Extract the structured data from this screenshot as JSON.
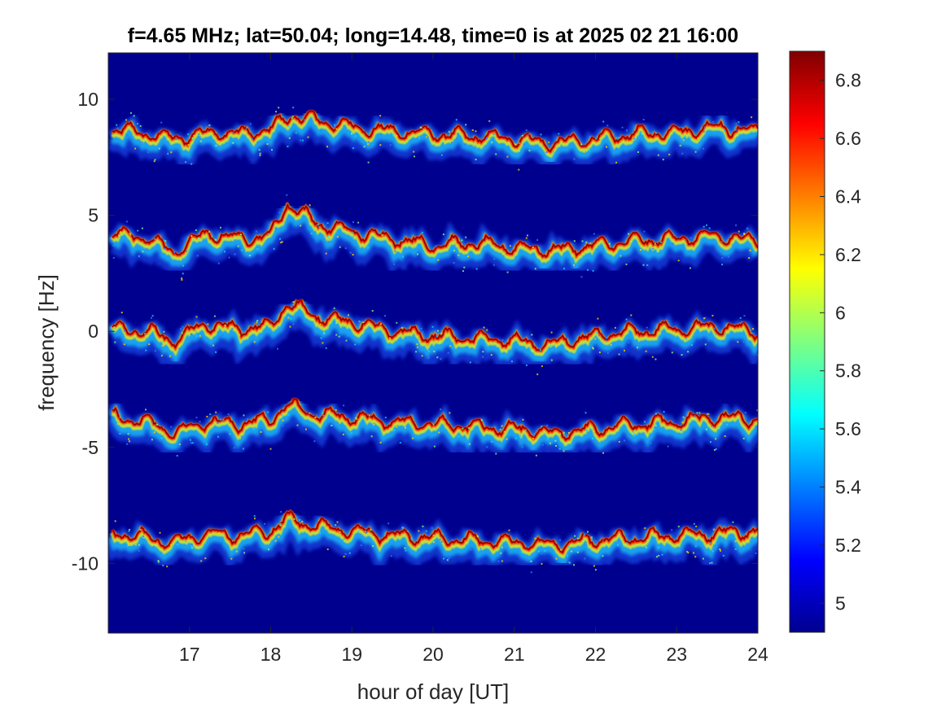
{
  "chart_data": {
    "type": "heatmap",
    "title": "f=4.65 MHz;  lat=50.04; long=14.48, time=0 is at 2025 02 21 16:00",
    "xlabel": "hour of day [UT]",
    "ylabel": "frequency [Hz]",
    "xlim": [
      16,
      24
    ],
    "ylim": [
      -13,
      12
    ],
    "x_ticks": [
      17,
      18,
      19,
      20,
      21,
      22,
      23,
      24
    ],
    "x_tick_labels": [
      "17",
      "18",
      "19",
      "20",
      "21",
      "22",
      "23",
      "24"
    ],
    "y_ticks": [
      -10,
      -5,
      0,
      5,
      10
    ],
    "y_tick_labels": [
      "-10",
      "-5",
      "0",
      "5",
      "10"
    ],
    "colorbar": {
      "range": [
        4.9,
        6.9
      ],
      "ticks": [
        5,
        5.2,
        5.4,
        5.6,
        5.8,
        6,
        6.2,
        6.4,
        6.6,
        6.8
      ],
      "tick_labels": [
        "5",
        "5.2",
        "5.4",
        "5.6",
        "5.8",
        "6",
        "6.2",
        "6.4",
        "6.6",
        "6.8"
      ],
      "colormap": "jet"
    },
    "background_color": "#00008f",
    "traces": [
      {
        "base_frequency": 8.6,
        "points": [
          [
            16.1,
            8.7
          ],
          [
            16.5,
            8.5
          ],
          [
            16.8,
            8.3
          ],
          [
            17.3,
            8.6
          ],
          [
            17.6,
            8.5
          ],
          [
            18.0,
            8.7
          ],
          [
            18.25,
            9.3
          ],
          [
            18.7,
            9.0
          ],
          [
            19.2,
            8.7
          ],
          [
            19.6,
            8.6
          ],
          [
            20.0,
            8.5
          ],
          [
            20.5,
            8.4
          ],
          [
            21.0,
            8.3
          ],
          [
            21.5,
            8.1
          ],
          [
            22.0,
            8.3
          ],
          [
            22.5,
            8.5
          ],
          [
            23.0,
            8.6
          ],
          [
            23.5,
            8.8
          ],
          [
            24.0,
            8.6
          ]
        ]
      },
      {
        "base_frequency": 4.1,
        "points": [
          [
            16.1,
            4.2
          ],
          [
            16.5,
            4.0
          ],
          [
            16.8,
            3.4
          ],
          [
            17.2,
            4.2
          ],
          [
            17.6,
            4.0
          ],
          [
            18.0,
            4.1
          ],
          [
            18.2,
            5.5
          ],
          [
            18.6,
            4.6
          ],
          [
            19.0,
            4.3
          ],
          [
            19.5,
            4.0
          ],
          [
            20.0,
            3.7
          ],
          [
            20.5,
            3.8
          ],
          [
            21.0,
            3.6
          ],
          [
            21.5,
            3.5
          ],
          [
            22.0,
            3.7
          ],
          [
            22.5,
            3.9
          ],
          [
            23.0,
            4.0
          ],
          [
            23.5,
            4.1
          ],
          [
            24.0,
            3.9
          ]
        ]
      },
      {
        "base_frequency": 0.0,
        "points": [
          [
            16.1,
            0.1
          ],
          [
            16.5,
            0.0
          ],
          [
            16.8,
            -0.4
          ],
          [
            17.2,
            0.3
          ],
          [
            17.6,
            0.1
          ],
          [
            18.0,
            0.2
          ],
          [
            18.2,
            1.2
          ],
          [
            18.6,
            0.6
          ],
          [
            19.0,
            0.4
          ],
          [
            19.5,
            0.0
          ],
          [
            20.0,
            -0.2
          ],
          [
            20.5,
            -0.3
          ],
          [
            21.0,
            -0.4
          ],
          [
            21.4,
            -0.6
          ],
          [
            22.0,
            -0.2
          ],
          [
            22.5,
            0.0
          ],
          [
            23.0,
            0.1
          ],
          [
            23.5,
            0.2
          ],
          [
            24.0,
            0.0
          ]
        ]
      },
      {
        "base_frequency": -3.8,
        "points": [
          [
            16.1,
            -3.7
          ],
          [
            16.5,
            -3.9
          ],
          [
            16.8,
            -4.4
          ],
          [
            17.2,
            -3.9
          ],
          [
            17.6,
            -4.0
          ],
          [
            18.0,
            -3.8
          ],
          [
            18.2,
            -3.2
          ],
          [
            18.6,
            -3.6
          ],
          [
            19.0,
            -3.7
          ],
          [
            19.5,
            -3.9
          ],
          [
            20.0,
            -4.0
          ],
          [
            20.5,
            -4.1
          ],
          [
            21.0,
            -4.2
          ],
          [
            21.5,
            -4.4
          ],
          [
            22.0,
            -4.2
          ],
          [
            22.5,
            -4.0
          ],
          [
            23.0,
            -3.9
          ],
          [
            23.5,
            -3.7
          ],
          [
            24.0,
            -3.8
          ]
        ]
      },
      {
        "base_frequency": -8.7,
        "points": [
          [
            16.1,
            -8.7
          ],
          [
            16.5,
            -8.9
          ],
          [
            16.8,
            -9.1
          ],
          [
            17.2,
            -8.7
          ],
          [
            17.6,
            -8.8
          ],
          [
            18.0,
            -8.6
          ],
          [
            18.2,
            -8.1
          ],
          [
            18.6,
            -8.4
          ],
          [
            19.0,
            -8.6
          ],
          [
            19.5,
            -8.8
          ],
          [
            20.0,
            -8.9
          ],
          [
            20.5,
            -9.0
          ],
          [
            21.0,
            -9.1
          ],
          [
            21.5,
            -9.2
          ],
          [
            22.0,
            -9.0
          ],
          [
            22.5,
            -8.9
          ],
          [
            23.0,
            -8.8
          ],
          [
            23.5,
            -8.7
          ],
          [
            24.0,
            -8.6
          ]
        ]
      }
    ]
  }
}
